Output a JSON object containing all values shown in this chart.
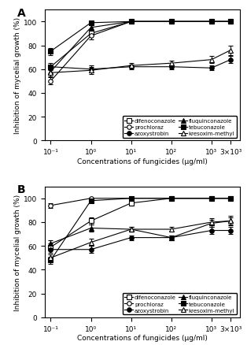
{
  "x_positions": [
    0.1,
    1,
    10,
    100,
    1000,
    3000
  ],
  "x_labels": [
    "10⁻¹",
    "10⁰",
    "10¹",
    "10²",
    "10³",
    "3×10³"
  ],
  "panel_A": {
    "difenoconazole": {
      "y": [
        62,
        90,
        100,
        100,
        100,
        100
      ],
      "yerr": [
        2,
        2,
        0.5,
        0.5,
        0.5,
        0.5
      ]
    },
    "prochloraz": {
      "y": [
        50,
        88,
        100,
        100,
        100,
        100
      ],
      "yerr": [
        3,
        3,
        0.5,
        0.5,
        0.5,
        0.5
      ]
    },
    "azoxystrobin": {
      "y": [
        62,
        60,
        62,
        62,
        61,
        68
      ],
      "yerr": [
        3,
        3,
        2,
        2,
        2,
        3
      ]
    },
    "fluquinconazole": {
      "y": [
        58,
        95,
        100,
        100,
        100,
        100
      ],
      "yerr": [
        3,
        2,
        0.5,
        0.5,
        0.5,
        0.5
      ]
    },
    "tebuconazole": {
      "y": [
        75,
        99,
        100,
        100,
        100,
        100
      ],
      "yerr": [
        3,
        1,
        0.5,
        0.5,
        0.5,
        0.5
      ]
    },
    "kresoxim_methyl": {
      "y": [
        57,
        59,
        63,
        65,
        68,
        76
      ],
      "yerr": [
        3,
        3,
        2,
        2,
        3,
        4
      ]
    }
  },
  "panel_B": {
    "difenoconazole": {
      "y": [
        59,
        81,
        96,
        100,
        100,
        100
      ],
      "yerr": [
        3,
        3,
        2,
        0.5,
        0.5,
        0.5
      ]
    },
    "prochloraz": {
      "y": [
        94,
        100,
        100,
        100,
        100,
        100
      ],
      "yerr": [
        2,
        0.5,
        0.5,
        0.5,
        0.5,
        0.5
      ]
    },
    "azoxystrobin": {
      "y": [
        57,
        57,
        67,
        67,
        73,
        73
      ],
      "yerr": [
        3,
        3,
        2,
        2,
        3,
        3
      ]
    },
    "fluquinconazole": {
      "y": [
        62,
        75,
        74,
        67,
        79,
        81
      ],
      "yerr": [
        3,
        3,
        2,
        2,
        3,
        4
      ]
    },
    "tebuconazole": {
      "y": [
        48,
        98,
        100,
        100,
        100,
        100
      ],
      "yerr": [
        3,
        1,
        0.5,
        0.5,
        0.5,
        0.5
      ]
    },
    "kresoxim_methyl": {
      "y": [
        50,
        63,
        74,
        74,
        80,
        81
      ],
      "yerr": [
        3,
        3,
        2,
        2,
        3,
        3
      ]
    }
  },
  "series_styles": {
    "difenoconazole": {
      "marker": "s",
      "fillstyle": "none",
      "color": "black",
      "linestyle": "-"
    },
    "prochloraz": {
      "marker": "o",
      "fillstyle": "none",
      "color": "black",
      "linestyle": "-"
    },
    "azoxystrobin": {
      "marker": "o",
      "fillstyle": "full",
      "color": "black",
      "linestyle": "-"
    },
    "fluquinconazole": {
      "marker": "^",
      "fillstyle": "full",
      "color": "black",
      "linestyle": "-"
    },
    "tebuconazole": {
      "marker": "s",
      "fillstyle": "full",
      "color": "black",
      "linestyle": "-"
    },
    "kresoxim_methyl": {
      "marker": "^",
      "fillstyle": "none",
      "color": "black",
      "linestyle": "-"
    }
  },
  "legend_labels": {
    "difenoconazole": "difenoconazole",
    "prochloraz": "prochloraz",
    "azoxystrobin": "azoxystrobin",
    "fluquinconazole": "fluquinconazole",
    "tebuconazole": "tebuconazole",
    "kresoxim_methyl": "kresoxim-methyl"
  },
  "ylabel": "Inhibition of mycelial growth (%)",
  "xlabel": "Concentrations of fungicides (μg/ml)",
  "ylim": [
    0,
    110
  ],
  "yticks": [
    0,
    20,
    40,
    60,
    80,
    100
  ],
  "panel_labels": [
    "A",
    "B"
  ]
}
